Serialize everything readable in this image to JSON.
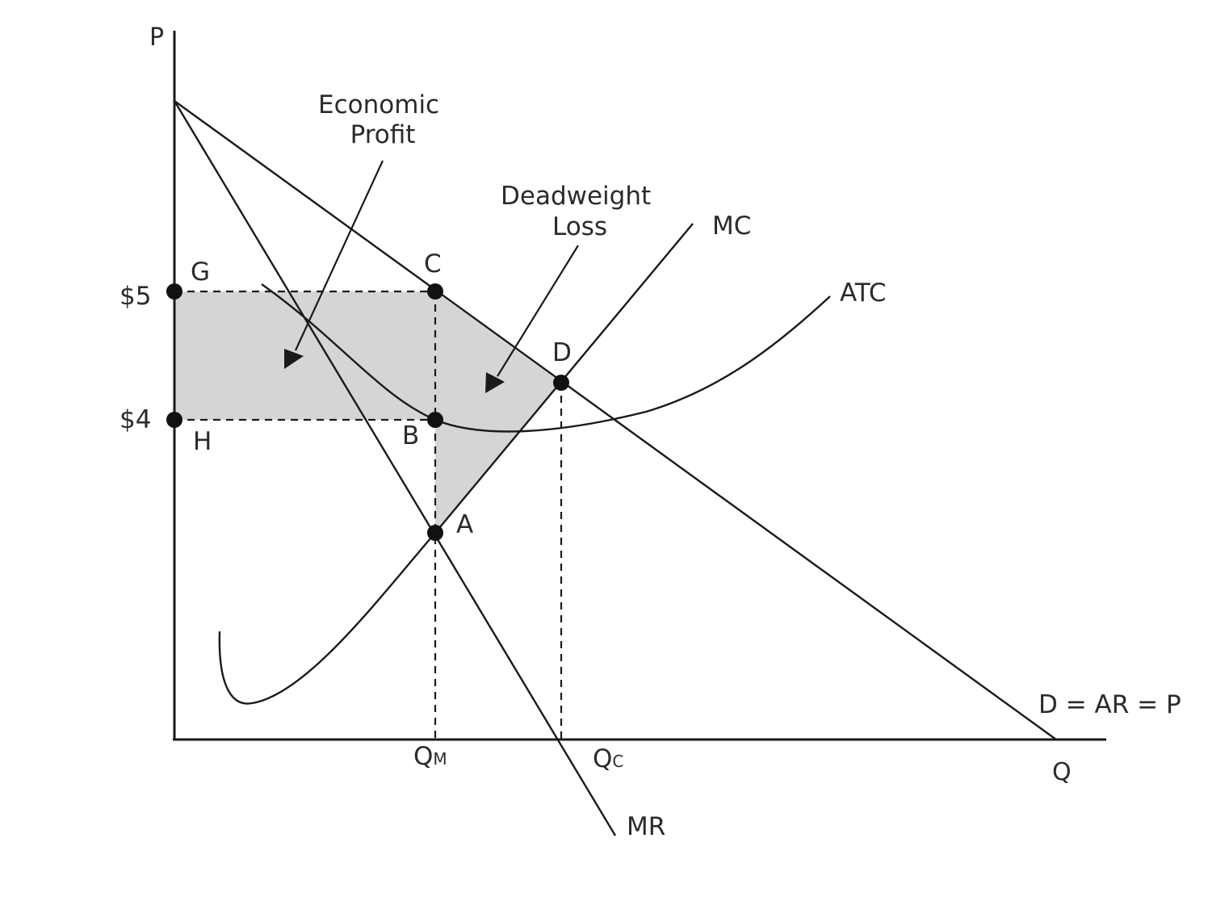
{
  "diagram": {
    "axes": {
      "y_label": "P",
      "x_label": "Q"
    },
    "price_labels": {
      "high": "$5",
      "low": "$4"
    },
    "quantity_labels": {
      "monopoly": {
        "main": "Q",
        "sub": "M"
      },
      "competitive": {
        "main": "Q",
        "sub": "C"
      }
    },
    "curves": {
      "demand": "D = AR = P",
      "marginal_revenue": "MR",
      "marginal_cost": "MC",
      "average_total_cost": "ATC"
    },
    "points": {
      "a": "A",
      "b": "B",
      "c": "C",
      "d": "D",
      "g": "G",
      "h": "H"
    },
    "annotations": {
      "economic_profit": [
        "Economic",
        "Profit"
      ],
      "deadweight_loss": [
        "Deadweight",
        "Loss"
      ]
    },
    "colors": {
      "shaded_region": "#d4d5d7",
      "lines": "#1a1a1a"
    }
  }
}
